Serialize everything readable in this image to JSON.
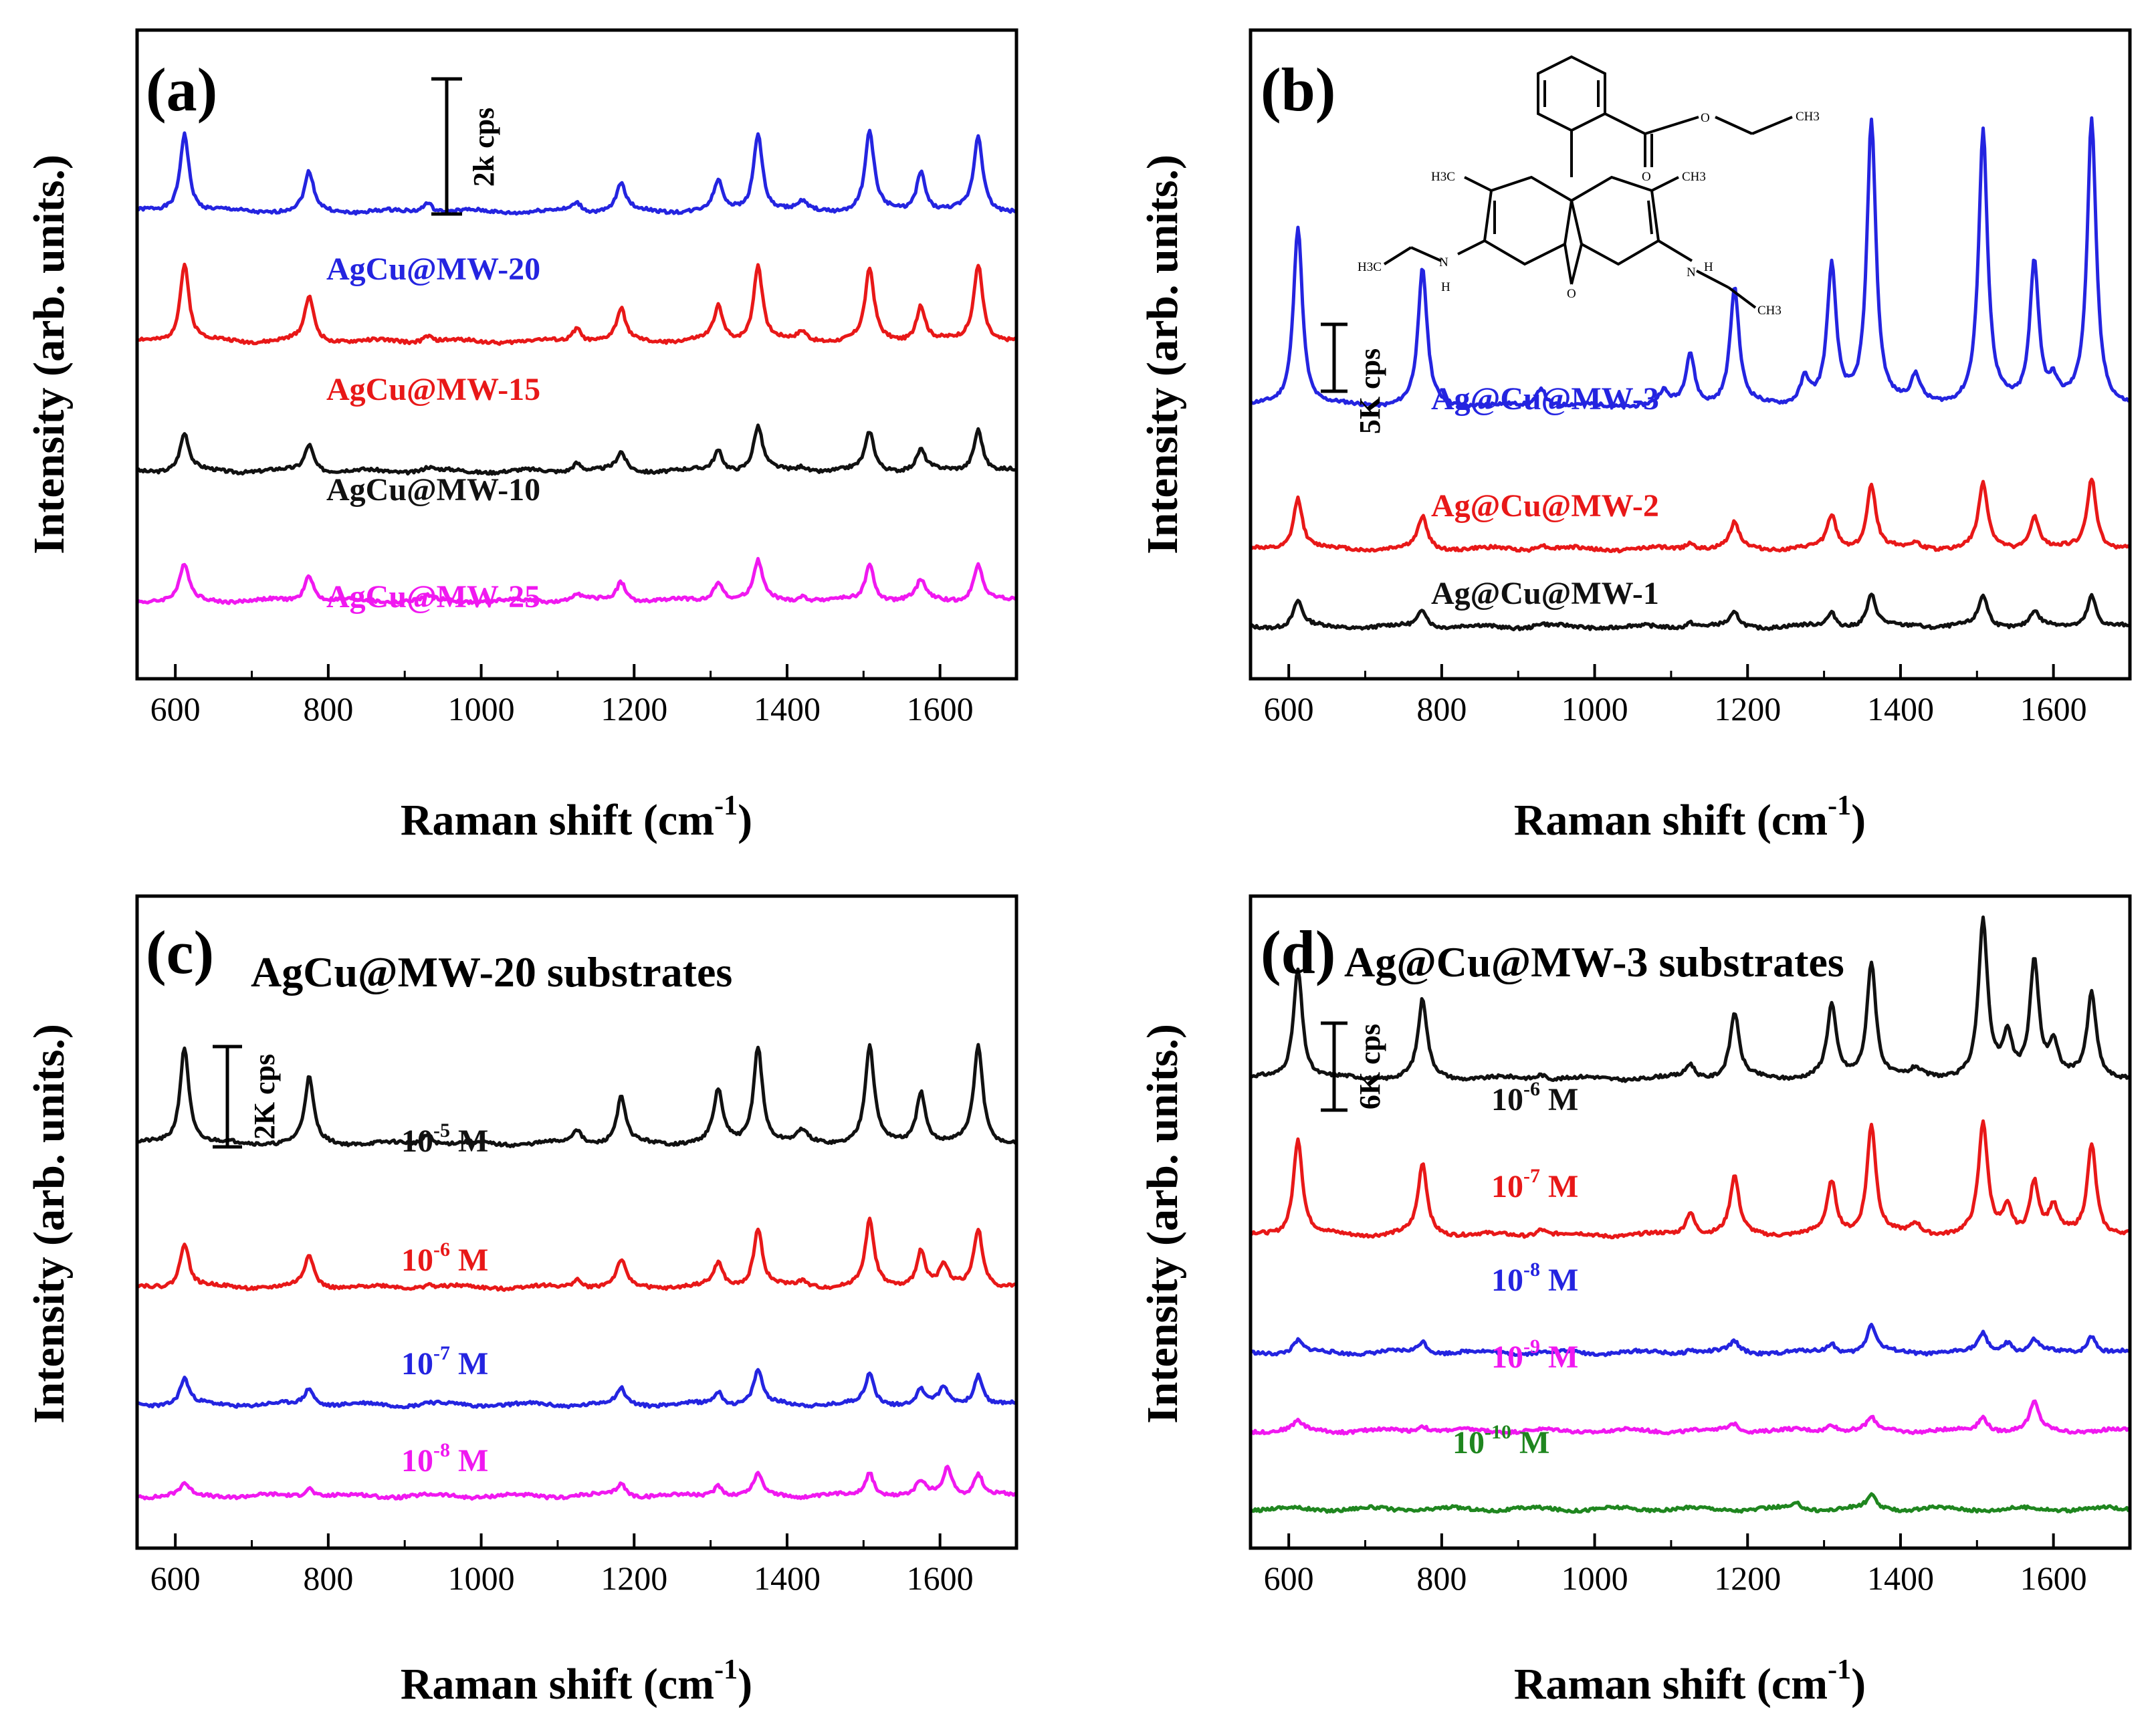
{
  "figure": {
    "description_axis": "Raman shift (cm-1)"
  },
  "chart_data": [
    {
      "type": "line",
      "panel": "(a)",
      "title": "",
      "xlabel": "Raman shift (cm",
      "xlabel_sup": "-1",
      "xlabel_tail": ")",
      "ylabel": "Intensity (arb. units.)",
      "xlim": [
        550,
        1700
      ],
      "xticks": [
        600,
        800,
        1000,
        1200,
        1400,
        1600
      ],
      "scale_bar": "2k cps",
      "series": [
        {
          "name": "AgCu@MW-20",
          "label_base": "AgCu@MW-20",
          "label_sup": "",
          "label_tail": "",
          "color": "#2424e0",
          "offset": 72,
          "peaks": [
            [
              612,
              12.2
            ],
            [
              775,
              6.0
            ],
            [
              930,
              1.6
            ],
            [
              1125,
              1.4
            ],
            [
              1183,
              4.4
            ],
            [
              1310,
              4.5
            ],
            [
              1362,
              12.2
            ],
            [
              1420,
              1.2
            ],
            [
              1508,
              12.2
            ],
            [
              1575,
              6.2
            ],
            [
              1650,
              11.6
            ]
          ]
        },
        {
          "name": "AgCu@MW-15",
          "label_base": "AgCu@MW-15",
          "label_sup": "",
          "label_tail": "",
          "color": "#e81818",
          "offset": 52,
          "peaks": [
            [
              612,
              12.0
            ],
            [
              775,
              7.0
            ],
            [
              930,
              1.0
            ],
            [
              1125,
              2.2
            ],
            [
              1183,
              4.8
            ],
            [
              1310,
              5.2
            ],
            [
              1362,
              11.8
            ],
            [
              1420,
              1.4
            ],
            [
              1508,
              11.0
            ],
            [
              1575,
              5.4
            ],
            [
              1650,
              12.0
            ]
          ]
        },
        {
          "name": "AgCu@MW-10",
          "label_base": "AgCu@MW-10",
          "label_sup": "",
          "label_tail": "",
          "color": "#111111",
          "offset": 32,
          "peaks": [
            [
              612,
              5.8
            ],
            [
              775,
              4.2
            ],
            [
              930,
              0.6
            ],
            [
              1125,
              1.4
            ],
            [
              1183,
              2.8
            ],
            [
              1310,
              3.2
            ],
            [
              1362,
              6.8
            ],
            [
              1420,
              0.8
            ],
            [
              1508,
              6.0
            ],
            [
              1575,
              3.2
            ],
            [
              1650,
              6.6
            ]
          ]
        },
        {
          "name": "AgCu@MW-25",
          "label_base": "AgCu@MW-25",
          "label_sup": "",
          "label_tail": "",
          "color": "#f018f0",
          "offset": 12,
          "peaks": [
            [
              612,
              5.6
            ],
            [
              775,
              4.2
            ],
            [
              930,
              0.6
            ],
            [
              1125,
              1.2
            ],
            [
              1183,
              3.0
            ],
            [
              1310,
              3.2
            ],
            [
              1362,
              6.0
            ],
            [
              1420,
              0.8
            ],
            [
              1508,
              5.6
            ],
            [
              1575,
              3.0
            ],
            [
              1650,
              5.8
            ]
          ]
        }
      ]
    },
    {
      "type": "line",
      "panel": "(b)",
      "title": "",
      "xlabel": "Raman shift (cm",
      "xlabel_sup": "-1",
      "xlabel_tail": ")",
      "ylabel": "Intensity (arb. units.)",
      "xlim": [
        550,
        1700
      ],
      "xticks": [
        600,
        800,
        1000,
        1200,
        1400,
        1600
      ],
      "scale_bar": "5K cps",
      "series": [
        {
          "name": "Ag@Cu@MW-3",
          "label_base": "Ag@Cu@MW-3",
          "label_sup": "",
          "label_tail": "",
          "color": "#2424e0",
          "offset": 42,
          "peaks": [
            [
              612,
              28.0
            ],
            [
              775,
              21.0
            ],
            [
              930,
              3.0
            ],
            [
              1090,
              2.0
            ],
            [
              1125,
              8.0
            ],
            [
              1183,
              18.0
            ],
            [
              1275,
              4.0
            ],
            [
              1310,
              21.0
            ],
            [
              1362,
              44.0
            ],
            [
              1420,
              4.0
            ],
            [
              1508,
              42.0
            ],
            [
              1575,
              22.0
            ],
            [
              1600,
              3.0
            ],
            [
              1650,
              44.0
            ]
          ]
        },
        {
          "name": "Ag@Cu@MW-2",
          "label_base": "Ag@Cu@MW-2",
          "label_sup": "",
          "label_tail": "",
          "color": "#e81818",
          "offset": 20,
          "peaks": [
            [
              612,
              8.0
            ],
            [
              775,
              5.0
            ],
            [
              930,
              0.8
            ],
            [
              1125,
              1.2
            ],
            [
              1183,
              4.0
            ],
            [
              1310,
              5.0
            ],
            [
              1362,
              10.0
            ],
            [
              1420,
              0.8
            ],
            [
              1508,
              10.0
            ],
            [
              1575,
              5.0
            ],
            [
              1650,
              11.0
            ]
          ]
        },
        {
          "name": "Ag@Cu@MW-1",
          "label_base": "Ag@Cu@MW-1",
          "label_sup": "",
          "label_tail": "",
          "color": "#111111",
          "offset": 8,
          "peaks": [
            [
              612,
              4.0
            ],
            [
              775,
              2.8
            ],
            [
              930,
              0.5
            ],
            [
              1125,
              0.8
            ],
            [
              1183,
              2.0
            ],
            [
              1310,
              2.2
            ],
            [
              1362,
              4.8
            ],
            [
              1420,
              0.5
            ],
            [
              1508,
              4.8
            ],
            [
              1575,
              2.4
            ],
            [
              1650,
              5.0
            ]
          ]
        }
      ]
    },
    {
      "type": "line",
      "panel": "(c)",
      "title": "AgCu@MW-20 substrates",
      "xlabel": "Raman shift (cm",
      "xlabel_sup": "-1",
      "xlabel_tail": ")",
      "ylabel": "Intensity (arb. units.)",
      "xlim": [
        550,
        1700
      ],
      "xticks": [
        600,
        800,
        1000,
        1200,
        1400,
        1600
      ],
      "scale_bar": "2K cps",
      "series": [
        {
          "name": "10-5 M",
          "label_base": "10",
          "label_sup": "-5",
          "label_tail": " M",
          "color": "#111111",
          "offset": 62,
          "peaks": [
            [
              612,
              15.0
            ],
            [
              775,
              10.0
            ],
            [
              930,
              1.6
            ],
            [
              1125,
              2.2
            ],
            [
              1183,
              7.0
            ],
            [
              1310,
              8.0
            ],
            [
              1362,
              15.0
            ],
            [
              1420,
              1.8
            ],
            [
              1508,
              15.0
            ],
            [
              1575,
              8.0
            ],
            [
              1650,
              15.0
            ]
          ]
        },
        {
          "name": "10-6 M",
          "label_base": "10",
          "label_sup": "-6",
          "label_tail": " M",
          "color": "#e81818",
          "offset": 40,
          "peaks": [
            [
              612,
              7.0
            ],
            [
              775,
              5.0
            ],
            [
              930,
              0.6
            ],
            [
              1125,
              1.4
            ],
            [
              1183,
              4.0
            ],
            [
              1310,
              3.6
            ],
            [
              1362,
              9.0
            ],
            [
              1420,
              0.8
            ],
            [
              1508,
              10.0
            ],
            [
              1575,
              5.6
            ],
            [
              1605,
              3.0
            ],
            [
              1650,
              9.0
            ]
          ]
        },
        {
          "name": "10-7 M",
          "label_base": "10",
          "label_sup": "-7",
          "label_tail": " M",
          "color": "#2424e0",
          "offset": 22,
          "peaks": [
            [
              612,
              4.0
            ],
            [
              775,
              2.6
            ],
            [
              930,
              0.4
            ],
            [
              1183,
              2.4
            ],
            [
              1310,
              2.0
            ],
            [
              1362,
              5.2
            ],
            [
              1508,
              4.6
            ],
            [
              1575,
              2.2
            ],
            [
              1605,
              2.4
            ],
            [
              1650,
              4.6
            ]
          ]
        },
        {
          "name": "10-8 M",
          "label_base": "10",
          "label_sup": "-8",
          "label_tail": " M",
          "color": "#f018f0",
          "offset": 8,
          "peaks": [
            [
              612,
              1.8
            ],
            [
              775,
              1.4
            ],
            [
              1183,
              2.0
            ],
            [
              1310,
              1.8
            ],
            [
              1362,
              3.2
            ],
            [
              1508,
              3.6
            ],
            [
              1575,
              2.0
            ],
            [
              1610,
              4.4
            ],
            [
              1650,
              3.4
            ]
          ]
        }
      ]
    },
    {
      "type": "line",
      "panel": "(d)",
      "title": "Ag@Cu@MW-3 substrates",
      "xlabel": "Raman shift (cm",
      "xlabel_sup": "-1",
      "xlabel_tail": ")",
      "ylabel": "Intensity (arb. units.)",
      "xlim": [
        550,
        1700
      ],
      "xticks": [
        600,
        800,
        1000,
        1200,
        1400,
        1600
      ],
      "scale_bar": "6K cps",
      "series": [
        {
          "name": "10-6 M",
          "label_base": "10",
          "label_sup": "-6",
          "label_tail": " M",
          "color": "#111111",
          "offset": 72,
          "peaks": [
            [
              612,
              17.0
            ],
            [
              775,
              12.0
            ],
            [
              930,
              0.8
            ],
            [
              1125,
              2.2
            ],
            [
              1183,
              10.0
            ],
            [
              1310,
              11.0
            ],
            [
              1362,
              18.0
            ],
            [
              1420,
              1.2
            ],
            [
              1508,
              24.0
            ],
            [
              1540,
              6.0
            ],
            [
              1575,
              18.0
            ],
            [
              1600,
              5.0
            ],
            [
              1650,
              13.0
            ]
          ]
        },
        {
          "name": "10-7 M",
          "label_base": "10",
          "label_sup": "-7",
          "label_tail": " M",
          "color": "#e81818",
          "offset": 48,
          "peaks": [
            [
              612,
              15.0
            ],
            [
              775,
              11.0
            ],
            [
              930,
              1.0
            ],
            [
              1125,
              3.6
            ],
            [
              1183,
              8.8
            ],
            [
              1310,
              8.0
            ],
            [
              1362,
              17.0
            ],
            [
              1420,
              1.6
            ],
            [
              1508,
              17.0
            ],
            [
              1540,
              4.0
            ],
            [
              1575,
              8.0
            ],
            [
              1600,
              4.0
            ],
            [
              1650,
              14.0
            ]
          ]
        },
        {
          "name": "10-8 M",
          "label_base": "10",
          "label_sup": "-8",
          "label_tail": " M",
          "color": "#2424e0",
          "offset": 30,
          "peaks": [
            [
              612,
              1.8
            ],
            [
              775,
              1.8
            ],
            [
              1125,
              0.6
            ],
            [
              1183,
              1.6
            ],
            [
              1310,
              1.4
            ],
            [
              1362,
              4.2
            ],
            [
              1508,
              2.8
            ],
            [
              1540,
              1.6
            ],
            [
              1575,
              1.8
            ],
            [
              1650,
              2.8
            ]
          ]
        },
        {
          "name": "10-9 M",
          "label_base": "10",
          "label_sup": "-9",
          "label_tail": " M",
          "color": "#f018f0",
          "offset": 18,
          "peaks": [
            [
              612,
              1.4
            ],
            [
              775,
              1.0
            ],
            [
              1183,
              1.2
            ],
            [
              1310,
              1.2
            ],
            [
              1362,
              1.8
            ],
            [
              1508,
              2.2
            ],
            [
              1575,
              4.2
            ]
          ]
        },
        {
          "name": "10-10 M",
          "label_base": "10",
          "label_sup": "-10",
          "label_tail": " M",
          "color": "#1f861f",
          "offset": 6,
          "peaks": [
            [
              1265,
              0.8
            ],
            [
              1362,
              2.0
            ]
          ]
        }
      ]
    }
  ],
  "molecule": {
    "labels": [
      "H3C",
      "CH3",
      "H3C",
      "CH3",
      "CH3",
      "N",
      "H",
      "N",
      "H",
      "O",
      "O",
      "O"
    ]
  }
}
